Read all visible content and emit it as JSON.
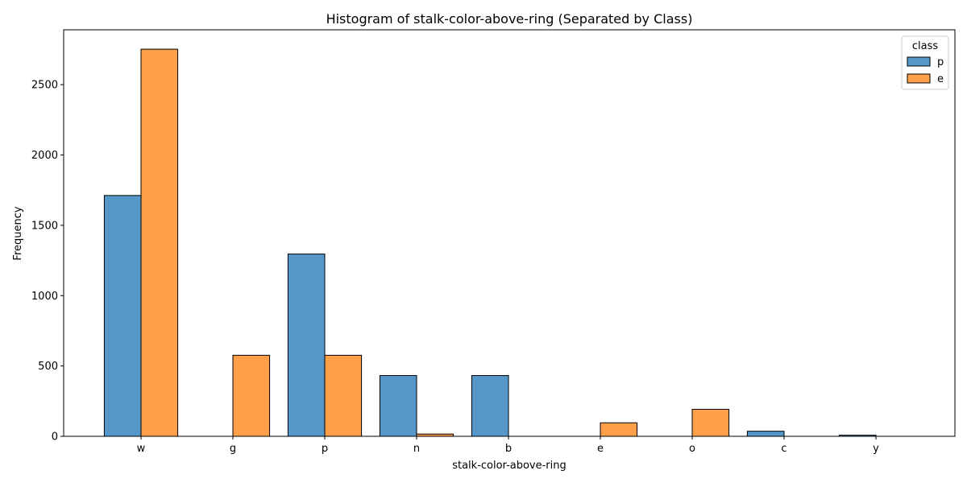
{
  "chart_data": {
    "type": "bar",
    "title": "Histogram of stalk-color-above-ring (Separated by Class)",
    "xlabel": "stalk-color-above-ring",
    "ylabel": "Frequency",
    "categories": [
      "w",
      "g",
      "p",
      "n",
      "b",
      "e",
      "o",
      "c",
      "y"
    ],
    "series": [
      {
        "name": "p",
        "color": "#5597c8",
        "values": [
          1712,
          0,
          1296,
          432,
          432,
          0,
          0,
          36,
          8
        ]
      },
      {
        "name": "e",
        "color": "#fea049",
        "values": [
          2752,
          576,
          576,
          16,
          0,
          96,
          192,
          0,
          0
        ]
      }
    ],
    "ylim": [
      0,
      2890
    ],
    "yticks": [
      0,
      500,
      1000,
      1500,
      2000,
      2500
    ],
    "legend": {
      "title": "class",
      "position": "top-right"
    },
    "grid": false
  }
}
